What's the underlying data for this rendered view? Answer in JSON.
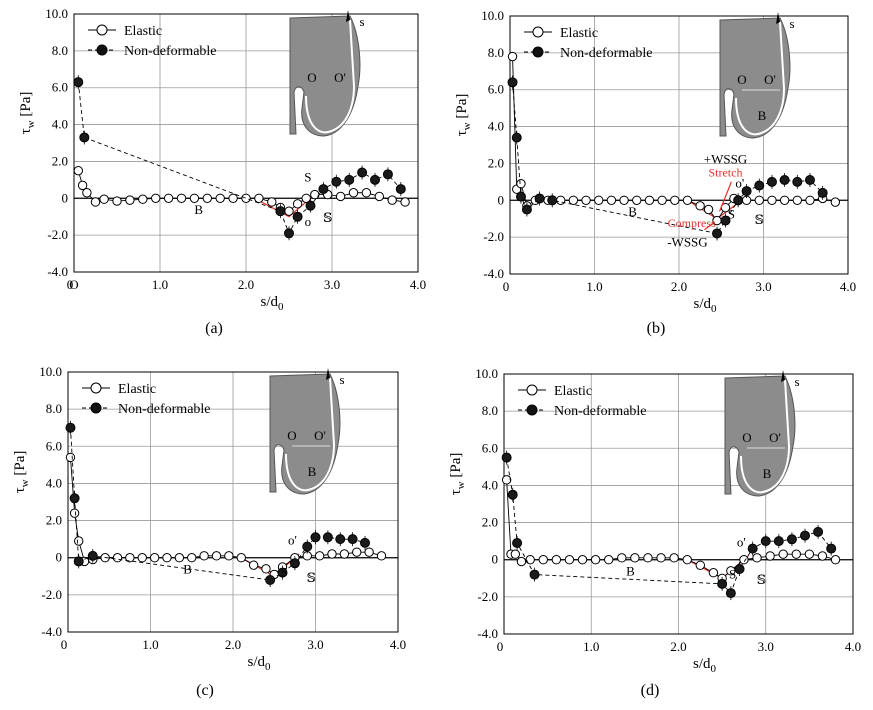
{
  "figure": {
    "ylabel_main": "τ",
    "ylabel_sub": "w",
    "ylabel_unit": "[Pa]",
    "xlabel_main": "s/d",
    "xlabel_sub": "0",
    "legend": [
      "Elastic",
      "Non-deformable"
    ],
    "inset_labels": {
      "s": "s",
      "o": "O",
      "o_prime": "O'",
      "b": "B"
    },
    "annotations": {
      "B": "B",
      "S": "S",
      "SS": "𝕊",
      "o": "o",
      "o_prime": "o'",
      "O": "O",
      "plus_wssg": "+WSSG",
      "minus_wssg": "-WSSG",
      "stretch": "Stretch",
      "compress": "Compress"
    },
    "colors": {
      "accent_red": "#e0332b",
      "dark_blue": "#2a2f6b"
    }
  },
  "chart_data": [
    {
      "type": "line",
      "caption": "(a)",
      "xlabel": "s/d0",
      "ylabel": "τw [Pa]",
      "xlim": [
        0,
        4.0
      ],
      "ylim": [
        -4.0,
        10.0
      ],
      "xticks": [
        "0",
        "1.0",
        "2.0",
        "3.0",
        "4.0"
      ],
      "yticks": [
        "-4.0",
        "-2.0",
        "0",
        "2.0",
        "4.0",
        "6.0",
        "8.0",
        "10.0"
      ],
      "x_origin_label": "O",
      "grid": true,
      "legend_position": "top-left",
      "series": [
        {
          "name": "Elastic",
          "x": [
            0.05,
            0.1,
            0.15,
            0.25,
            0.35,
            0.5,
            0.65,
            0.8,
            0.95,
            1.1,
            1.25,
            1.4,
            1.55,
            1.7,
            1.85,
            2.0,
            2.15,
            2.3,
            2.4,
            2.5,
            2.6,
            2.7,
            2.8,
            2.95,
            3.1,
            3.25,
            3.4,
            3.55,
            3.7,
            3.85
          ],
          "y": [
            1.5,
            0.7,
            0.3,
            -0.2,
            -0.05,
            -0.15,
            -0.1,
            -0.05,
            0,
            0,
            0,
            0,
            0,
            0,
            0,
            0,
            0,
            -0.2,
            -0.5,
            -0.7,
            -0.3,
            0,
            0.2,
            0.2,
            0.1,
            0.3,
            0.3,
            0.1,
            -0.1,
            -0.2
          ]
        },
        {
          "name": "Non-deformable",
          "x": [
            0.05,
            0.12,
            2.4,
            2.5,
            2.6,
            2.75,
            2.9,
            3.05,
            3.2,
            3.35,
            3.5,
            3.65,
            3.8
          ],
          "y": [
            6.3,
            3.3,
            -0.7,
            -1.9,
            -1.0,
            -0.4,
            0.5,
            0.9,
            1.0,
            1.4,
            1.0,
            1.3,
            0.5
          ]
        }
      ]
    },
    {
      "type": "line",
      "caption": "(b)",
      "xlabel": "s/d0",
      "ylabel": "τw [Pa]",
      "xlim": [
        0,
        4.0
      ],
      "ylim": [
        -4.0,
        10.0
      ],
      "xticks": [
        "0",
        "1.0",
        "2.0",
        "3.0",
        "4.0"
      ],
      "yticks": [
        "-4.0",
        "-2.0",
        "0",
        "2.0",
        "4.0",
        "6.0",
        "8.0",
        "10.0"
      ],
      "grid": true,
      "legend_position": "top-left",
      "series": [
        {
          "name": "Elastic",
          "x": [
            0.03,
            0.08,
            0.13,
            0.2,
            0.3,
            0.45,
            0.6,
            0.75,
            0.9,
            1.05,
            1.2,
            1.35,
            1.5,
            1.65,
            1.8,
            1.95,
            2.1,
            2.25,
            2.35,
            2.45,
            2.55,
            2.65,
            2.8,
            2.95,
            3.1,
            3.25,
            3.4,
            3.55,
            3.7,
            3.85
          ],
          "y": [
            7.8,
            0.6,
            0.9,
            -0.3,
            0,
            0,
            0,
            0,
            0,
            0,
            0,
            0,
            0,
            0,
            0,
            0,
            0,
            -0.3,
            -0.5,
            -1.1,
            -0.4,
            0.1,
            0,
            0,
            0,
            0,
            0,
            0,
            0.1,
            -0.1
          ]
        },
        {
          "name": "Non-deformable",
          "x": [
            0.03,
            0.08,
            0.13,
            0.2,
            0.35,
            0.5,
            2.45,
            2.55,
            2.7,
            2.8,
            2.95,
            3.1,
            3.25,
            3.4,
            3.55,
            3.7
          ],
          "y": [
            6.4,
            3.4,
            0.2,
            -0.5,
            0.1,
            0,
            -1.8,
            -1.1,
            0,
            0.5,
            0.8,
            1.0,
            1.1,
            1.0,
            1.1,
            0.4
          ]
        }
      ]
    },
    {
      "type": "line",
      "caption": "(c)",
      "xlabel": "s/d0",
      "ylabel": "τw [Pa]",
      "xlim": [
        0,
        4.0
      ],
      "ylim": [
        -4.0,
        10.0
      ],
      "xticks": [
        "0",
        "1.0",
        "2.0",
        "3.0",
        "4.0"
      ],
      "yticks": [
        "-4.0",
        "-2.0",
        "0",
        "2.0",
        "4.0",
        "6.0",
        "8.0",
        "10.0"
      ],
      "grid": true,
      "legend_position": "top-left",
      "series": [
        {
          "name": "Elastic",
          "x": [
            0.03,
            0.08,
            0.13,
            0.2,
            0.3,
            0.45,
            0.6,
            0.75,
            0.9,
            1.05,
            1.2,
            1.35,
            1.5,
            1.65,
            1.8,
            1.95,
            2.1,
            2.25,
            2.4,
            2.5,
            2.6,
            2.75,
            2.9,
            3.05,
            3.2,
            3.35,
            3.5,
            3.65,
            3.8
          ],
          "y": [
            5.4,
            2.4,
            0.9,
            -0.2,
            -0.1,
            0,
            0,
            0,
            0,
            0,
            0,
            0,
            0,
            0.1,
            0.1,
            0.1,
            0,
            -0.4,
            -0.6,
            -0.9,
            -0.5,
            0,
            0.1,
            0.1,
            0.2,
            0.2,
            0.3,
            0.3,
            0.1
          ]
        },
        {
          "name": "Non-deformable",
          "x": [
            0.03,
            0.08,
            0.13,
            0.3,
            2.45,
            2.6,
            2.75,
            2.9,
            3.0,
            3.15,
            3.3,
            3.45,
            3.6
          ],
          "y": [
            7.0,
            3.2,
            -0.2,
            0.1,
            -1.2,
            -0.8,
            -0.3,
            0.6,
            1.1,
            1.1,
            1.0,
            1.0,
            0.8
          ]
        }
      ]
    },
    {
      "type": "line",
      "caption": "(d)",
      "xlabel": "s/d0",
      "ylabel": "τw [Pa]",
      "xlim": [
        0,
        4.0
      ],
      "ylim": [
        -4.0,
        10.0
      ],
      "xticks": [
        "0",
        "1.0",
        "2.0",
        "3.0",
        "4.0"
      ],
      "yticks": [
        "-4.0",
        "-2.0",
        "0",
        "2.0",
        "4.0",
        "6.0",
        "8.0",
        "10.0"
      ],
      "grid": true,
      "legend_position": "top-left",
      "series": [
        {
          "name": "Elastic",
          "x": [
            0.03,
            0.08,
            0.13,
            0.2,
            0.3,
            0.45,
            0.6,
            0.75,
            0.9,
            1.05,
            1.2,
            1.35,
            1.5,
            1.65,
            1.8,
            1.95,
            2.1,
            2.25,
            2.4,
            2.5,
            2.6,
            2.75,
            2.9,
            3.05,
            3.2,
            3.35,
            3.5,
            3.65,
            3.8
          ],
          "y": [
            4.3,
            0.3,
            0.3,
            -0.1,
            0,
            0,
            0,
            0,
            0,
            0,
            0,
            0.1,
            0.1,
            0.1,
            0.1,
            0.1,
            0,
            -0.3,
            -0.7,
            -1.0,
            -0.6,
            0,
            0.1,
            0.2,
            0.3,
            0.3,
            0.3,
            0.2,
            0
          ]
        },
        {
          "name": "Non-deformable",
          "x": [
            0.03,
            0.1,
            0.15,
            0.35,
            2.5,
            2.6,
            2.7,
            2.85,
            3.0,
            3.15,
            3.3,
            3.45,
            3.6,
            3.75
          ],
          "y": [
            5.5,
            3.5,
            0.9,
            -0.8,
            -1.3,
            -1.8,
            -0.5,
            0.6,
            1.0,
            1.0,
            1.1,
            1.3,
            1.5,
            0.6
          ]
        }
      ]
    }
  ]
}
